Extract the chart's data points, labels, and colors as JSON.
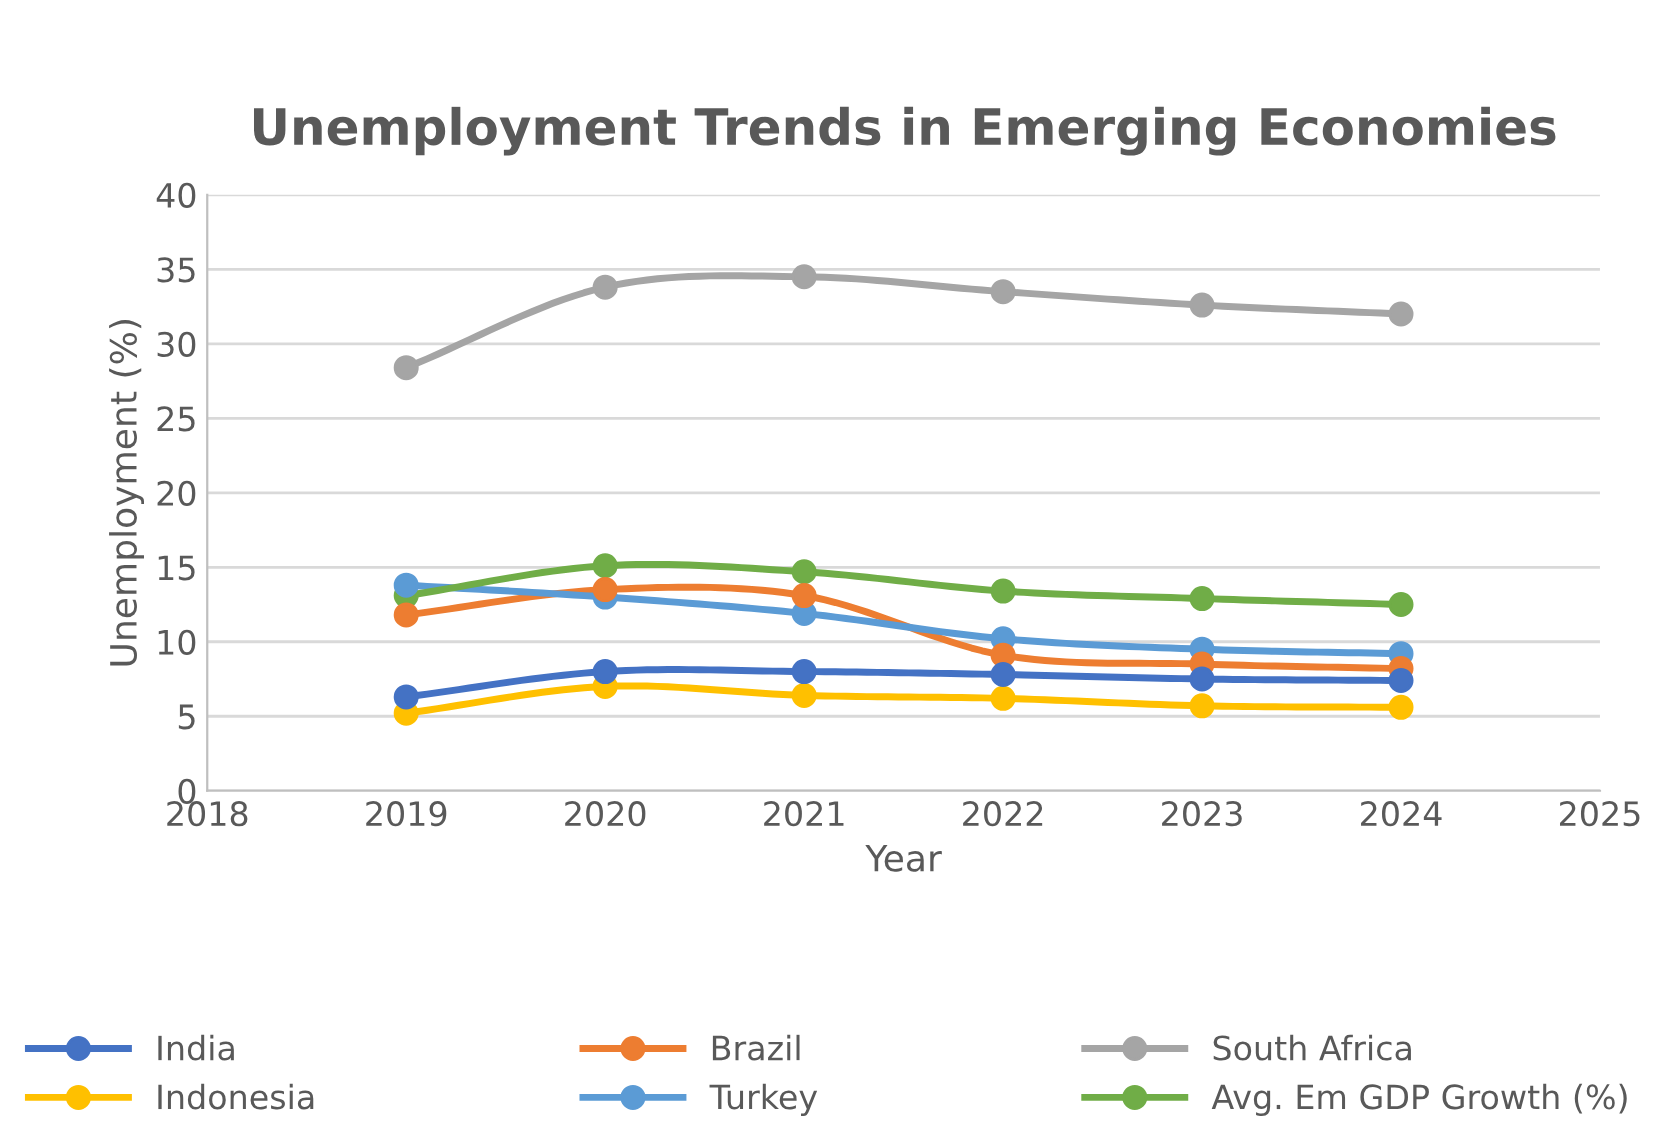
{
  "chart_data": {
    "type": "line",
    "title": "Unemployment Trends in Emerging Economies",
    "xlabel": "Year",
    "ylabel": "Unemployment (%)",
    "x": [
      2019,
      2020,
      2021,
      2022,
      2023,
      2024
    ],
    "series": [
      {
        "name": "India",
        "color": "#4472c4",
        "values": [
          6.3,
          8.0,
          8.0,
          7.8,
          7.5,
          7.4
        ]
      },
      {
        "name": "Brazil",
        "color": "#ed7d31",
        "values": [
          11.8,
          13.5,
          13.1,
          9.1,
          8.5,
          8.2
        ]
      },
      {
        "name": "South Africa",
        "color": "#a5a5a5",
        "values": [
          28.4,
          33.8,
          34.5,
          33.5,
          32.6,
          32.0
        ]
      },
      {
        "name": "Indonesia",
        "color": "#ffc000",
        "values": [
          5.2,
          7.0,
          6.4,
          6.2,
          5.7,
          5.6
        ]
      },
      {
        "name": "Turkey",
        "color": "#5b9bd5",
        "values": [
          13.8,
          13.0,
          11.9,
          10.2,
          9.5,
          9.2
        ]
      },
      {
        "name": "Avg. Em GDP Growth (%)",
        "color": "#70ad47",
        "values": [
          13.1,
          15.1,
          14.7,
          13.4,
          12.9,
          12.5
        ]
      }
    ],
    "xlim": [
      2018,
      2025
    ],
    "xticks": [
      2018,
      2019,
      2020,
      2021,
      2022,
      2023,
      2024,
      2025
    ],
    "ylim": [
      0,
      40
    ],
    "yticks": [
      0,
      5,
      10,
      15,
      20,
      25,
      30,
      35,
      40
    ],
    "grid": "y",
    "legend": "bottom",
    "marker": "circle",
    "line_style": "solid"
  }
}
